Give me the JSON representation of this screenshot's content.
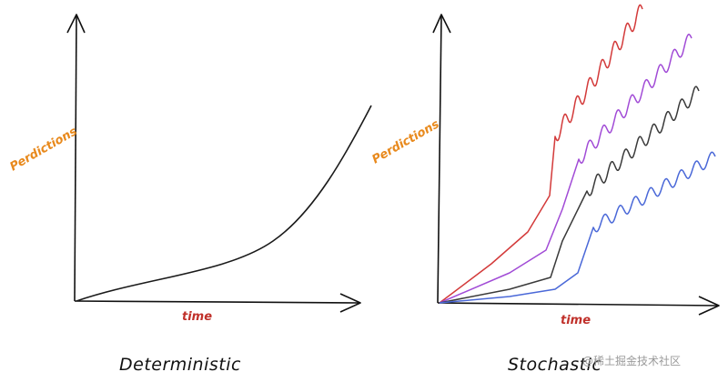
{
  "panels": [
    {
      "id": "deterministic",
      "ylabel": "Perdictions",
      "xlabel": "time",
      "caption": "Deterministic",
      "curves": [
        {
          "color": "#1a1a1a",
          "kind": "smooth"
        }
      ]
    },
    {
      "id": "stochastic",
      "ylabel": "Perdictions",
      "xlabel": "time",
      "caption": "Stochastic",
      "curves": [
        {
          "color": "#d33a3a",
          "kind": "wavy"
        },
        {
          "color": "#a14bd6",
          "kind": "wavy"
        },
        {
          "color": "#3a3a3a",
          "kind": "wavy"
        },
        {
          "color": "#4a68d8",
          "kind": "wavy"
        }
      ]
    }
  ],
  "watermark": "@稀土掘金技术社区"
}
